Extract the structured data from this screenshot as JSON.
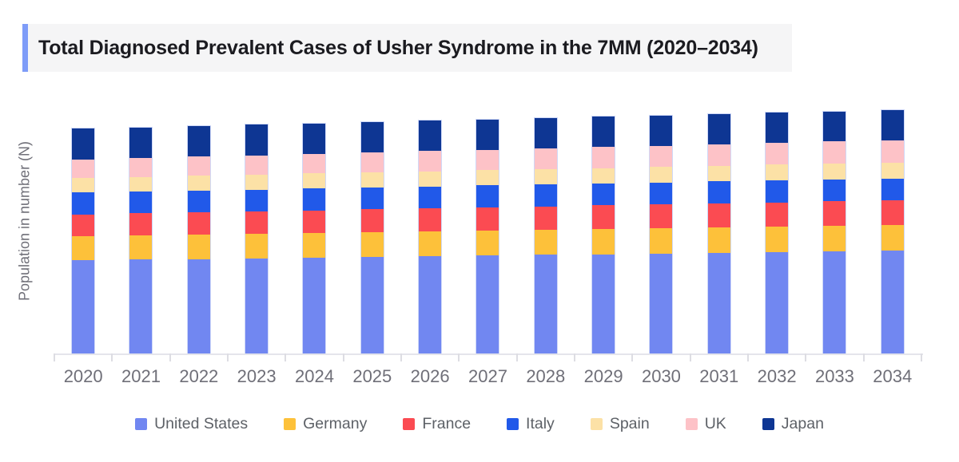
{
  "header": {
    "title": "Total Diagnosed Prevalent Cases of Usher Syndrome in the 7MM (2020–2034)",
    "accent_color": "#7E9CF8",
    "background_color": "#F5F5F6"
  },
  "chart_data": {
    "type": "bar",
    "stacked": true,
    "title": "Total Diagnosed Prevalent Cases of Usher Syndrome in the 7MM (2020–2034)",
    "xlabel": "",
    "ylabel": "Population in number (N)",
    "y_axis_numeric_labels": false,
    "unit_note": "y-axis shows no numeric tick labels; values are estimated relative heights",
    "ylim": [
      0,
      331
    ],
    "grid": false,
    "legend_position": "bottom",
    "categories": [
      "2020",
      "2021",
      "2022",
      "2023",
      "2024",
      "2025",
      "2026",
      "2027",
      "2028",
      "2029",
      "2030",
      "2031",
      "2032",
      "2033",
      "2034"
    ],
    "series": [
      {
        "name": "United States",
        "color": "#7187F1",
        "values": [
          116.7,
          117.6,
          118.4,
          119.3,
          120.1,
          121.0,
          121.8,
          122.7,
          123.6,
          124.4,
          125.3,
          126.1,
          127.0,
          127.8,
          128.7
        ]
      },
      {
        "name": "Germany",
        "color": "#FDC13A",
        "values": [
          30.0,
          30.1,
          30.3,
          30.4,
          30.6,
          30.7,
          30.9,
          31.0,
          31.1,
          31.3,
          31.4,
          31.6,
          31.7,
          31.9,
          32.0
        ]
      },
      {
        "name": "France",
        "color": "#FB4B52",
        "values": [
          27.6,
          27.9,
          28.1,
          28.4,
          28.7,
          28.9,
          29.2,
          29.5,
          29.7,
          30.0,
          30.2,
          30.5,
          30.8,
          31.0,
          31.3
        ]
      },
      {
        "name": "Italy",
        "color": "#2159E9",
        "values": [
          27.4,
          27.4,
          27.4,
          27.4,
          27.4,
          27.4,
          27.4,
          27.4,
          27.4,
          27.4,
          27.4,
          27.4,
          27.4,
          27.4,
          27.4
        ]
      },
      {
        "name": "Spain",
        "color": "#FCE1A6",
        "values": [
          18.3,
          18.4,
          18.5,
          18.7,
          18.8,
          18.9,
          19.0,
          19.1,
          19.3,
          19.4,
          19.5,
          19.6,
          19.7,
          19.9,
          20.0
        ]
      },
      {
        "name": "UK",
        "color": "#FDC2C7",
        "values": [
          23.3,
          23.6,
          24.0,
          24.3,
          24.6,
          25.0,
          25.3,
          25.7,
          26.0,
          26.3,
          26.7,
          27.0,
          27.3,
          27.7,
          28.0
        ]
      },
      {
        "name": "Japan",
        "color": "#0E3693",
        "values": [
          38.4,
          38.3,
          38.3,
          38.2,
          38.2,
          38.1,
          38.1,
          38.0,
          38.0,
          37.9,
          37.9,
          37.8,
          37.8,
          37.7,
          37.7
        ]
      }
    ]
  },
  "axis_style": {
    "line_color": "#E5E5EB",
    "tick_color": "#DDDDE3",
    "label_color": "#6F6F78"
  }
}
